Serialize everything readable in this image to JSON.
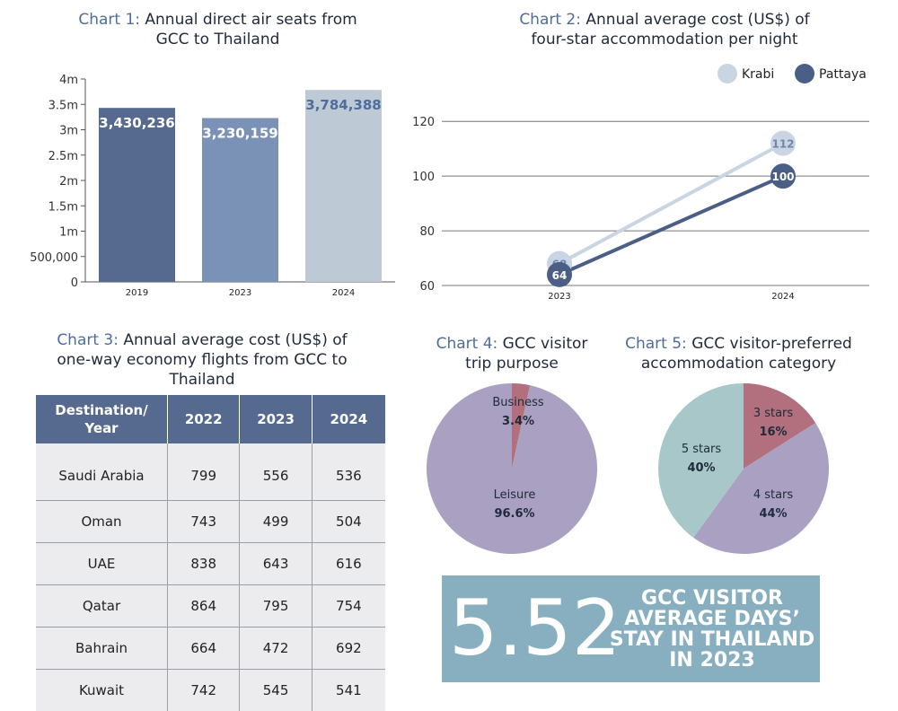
{
  "colors": {
    "title_accent": "#4f6d9a",
    "bar_2019": "#56698f",
    "bar_2023": "#7a92b6",
    "bar_2024": "#bdcad6",
    "krabi": "#c9d5e2",
    "pattaya": "#4b5e86",
    "pie_business": "#b26f7e",
    "pie_leisure": "#a9a0c2",
    "pie_5stars": "#a7c7c8",
    "pie_4stars": "#a9a0c2",
    "pie_3stars": "#b26f7e",
    "table_header": "#56698f",
    "banner": "#88afc0"
  },
  "chart1": {
    "title_num": "Chart 1:",
    "title_rest": "Annual direct air seats from GCC to Thailand"
  },
  "chart2": {
    "title_num": "Chart 2:",
    "title_rest": "Annual average cost (US$) of four-star accommodation per night"
  },
  "chart3": {
    "title_num": "Chart 3:",
    "title_rest": "Annual average cost (US$) of one-way economy flights from GCC to Thailand"
  },
  "chart4": {
    "title_num": "Chart 4:",
    "title_rest": "GCC visitor trip purpose"
  },
  "chart5": {
    "title_num": "Chart 5:",
    "title_rest": "GCC visitor-preferred accommodation category"
  },
  "chart_data": [
    {
      "type": "bar",
      "categories": [
        "2019",
        "2023",
        "2024"
      ],
      "values": [
        3430236,
        3230159,
        3784388
      ],
      "data_labels": [
        "3,430,236",
        "3,230,159",
        "3,784,388"
      ],
      "ylim": [
        0,
        4000000
      ],
      "yticks": [
        0,
        500000,
        1000000,
        1500000,
        2000000,
        2500000,
        3000000,
        3500000,
        4000000
      ],
      "ytick_labels": [
        "0",
        "500,000",
        "1m",
        "1.5m",
        "2m",
        "2.5m",
        "3m",
        "3.5m",
        "4m"
      ]
    },
    {
      "type": "line",
      "x": [
        "2023",
        "2024"
      ],
      "series": [
        {
          "name": "Krabi",
          "values": [
            68,
            112
          ]
        },
        {
          "name": "Pattaya",
          "values": [
            64,
            100
          ]
        }
      ],
      "ylim": [
        60,
        125
      ],
      "yticks": [
        60,
        80,
        100,
        120
      ],
      "grid": true,
      "legend": "top-right"
    },
    {
      "type": "table",
      "columns": [
        "Destination/ Year",
        "2022",
        "2023",
        "2024"
      ],
      "rows": [
        [
          "Saudi Arabia",
          "799",
          "556",
          "536"
        ],
        [
          "Oman",
          "743",
          "499",
          "504"
        ],
        [
          "UAE",
          "838",
          "643",
          "616"
        ],
        [
          "Qatar",
          "864",
          "795",
          "754"
        ],
        [
          "Bahrain",
          "664",
          "472",
          "692"
        ],
        [
          "Kuwait",
          "742",
          "545",
          "541"
        ]
      ]
    },
    {
      "type": "pie",
      "labels": [
        "Business",
        "Leisure"
      ],
      "values": [
        3.4,
        96.6
      ],
      "value_labels": [
        "3.4%",
        "96.6%"
      ]
    },
    {
      "type": "pie",
      "labels": [
        "3 stars",
        "4 stars",
        "5 stars"
      ],
      "values": [
        16,
        44,
        40
      ],
      "value_labels": [
        "16%",
        "44%",
        "40%"
      ]
    }
  ],
  "banner": {
    "value": "5.52",
    "line1": "GCC VISITOR",
    "line2": "AVERAGE DAYS’",
    "line3": "STAY IN THAILAND",
    "line4": "IN 2023"
  }
}
